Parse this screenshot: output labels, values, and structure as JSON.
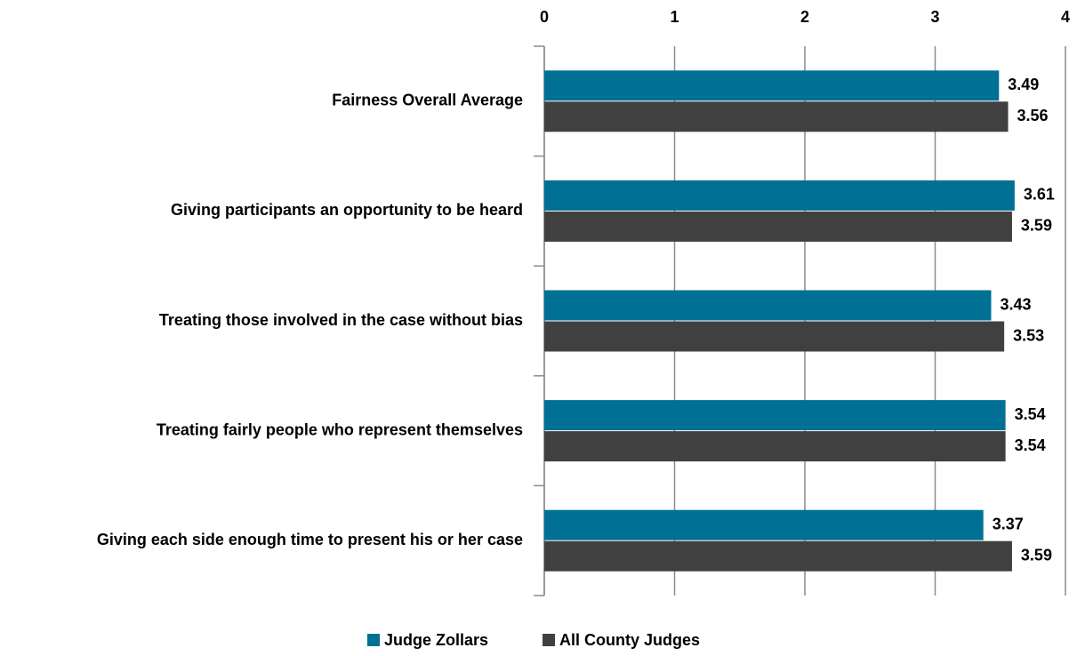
{
  "chart_data": {
    "type": "bar",
    "orientation": "horizontal",
    "categories": [
      "Fairness Overall Average",
      "Giving participants an opportunity to be heard",
      "Treating those involved in the case without bias",
      "Treating fairly people who represent themselves",
      "Giving each side enough time to present his or her case"
    ],
    "series": [
      {
        "name": "Judge Zollars",
        "color": "#007095",
        "values": [
          3.49,
          3.61,
          3.43,
          3.54,
          3.37
        ]
      },
      {
        "name": "All County Judges",
        "color": "#404040",
        "values": [
          3.56,
          3.59,
          3.53,
          3.54,
          3.59
        ]
      }
    ],
    "xlim": [
      0,
      4
    ],
    "xticks": [
      0,
      1,
      2,
      3,
      4
    ],
    "grid": true,
    "legend": "bottom"
  }
}
